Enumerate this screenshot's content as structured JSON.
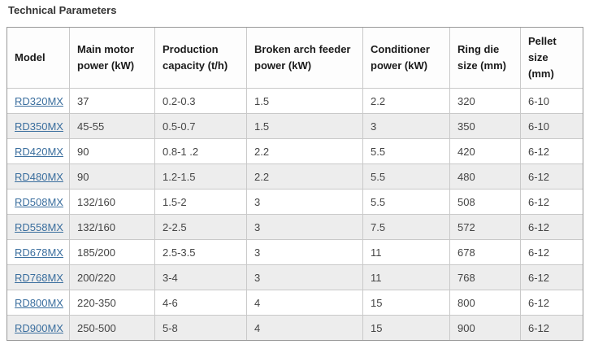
{
  "page": {
    "title": "Technical Parameters"
  },
  "table": {
    "columns": [
      "Model",
      "Main motor power (kW)",
      "Production capacity (t/h)",
      "Broken arch feeder power (kW)",
      "Conditioner power (kW)",
      "Ring die size (mm)",
      "Pellet size (mm)"
    ],
    "rows": [
      {
        "model": "RD320MX",
        "values": [
          "37",
          "0.2-0.3",
          "1.5",
          "2.2",
          "320",
          "6-10"
        ]
      },
      {
        "model": "RD350MX",
        "values": [
          "45-55",
          "0.5-0.7",
          "1.5",
          "3",
          "350",
          "6-10"
        ]
      },
      {
        "model": "RD420MX",
        "values": [
          "90",
          "0.8-1 .2",
          "2.2",
          "5.5",
          "420",
          "6-12"
        ]
      },
      {
        "model": "RD480MX",
        "values": [
          "90",
          "1.2-1.5",
          "2.2",
          "5.5",
          "480",
          "6-12"
        ]
      },
      {
        "model": "RD508MX",
        "values": [
          "132/160",
          "1.5-2",
          "3",
          "5.5",
          "508",
          "6-12"
        ]
      },
      {
        "model": "RD558MX",
        "values": [
          "132/160",
          "2-2.5",
          "3",
          "7.5",
          "572",
          "6-12"
        ]
      },
      {
        "model": "RD678MX",
        "values": [
          "185/200",
          "2.5-3.5",
          "3",
          "11",
          "678",
          "6-12"
        ]
      },
      {
        "model": "RD768MX",
        "values": [
          "200/220",
          "3-4",
          "3",
          "11",
          "768",
          "6-12"
        ]
      },
      {
        "model": "RD800MX",
        "values": [
          "220-350",
          "4-6",
          "4",
          "15",
          "800",
          "6-12"
        ]
      },
      {
        "model": "RD900MX",
        "values": [
          "250-500",
          "5-8",
          "4",
          "15",
          "900",
          "6-12"
        ]
      }
    ]
  },
  "colors": {
    "link": "#3a6e9e",
    "row_alt_background": "#ededed",
    "cell_border": "#c9c9c9",
    "outer_border": "#999999",
    "body_text": "#444444",
    "header_text": "#1a1a1a",
    "title_text": "#333333"
  }
}
